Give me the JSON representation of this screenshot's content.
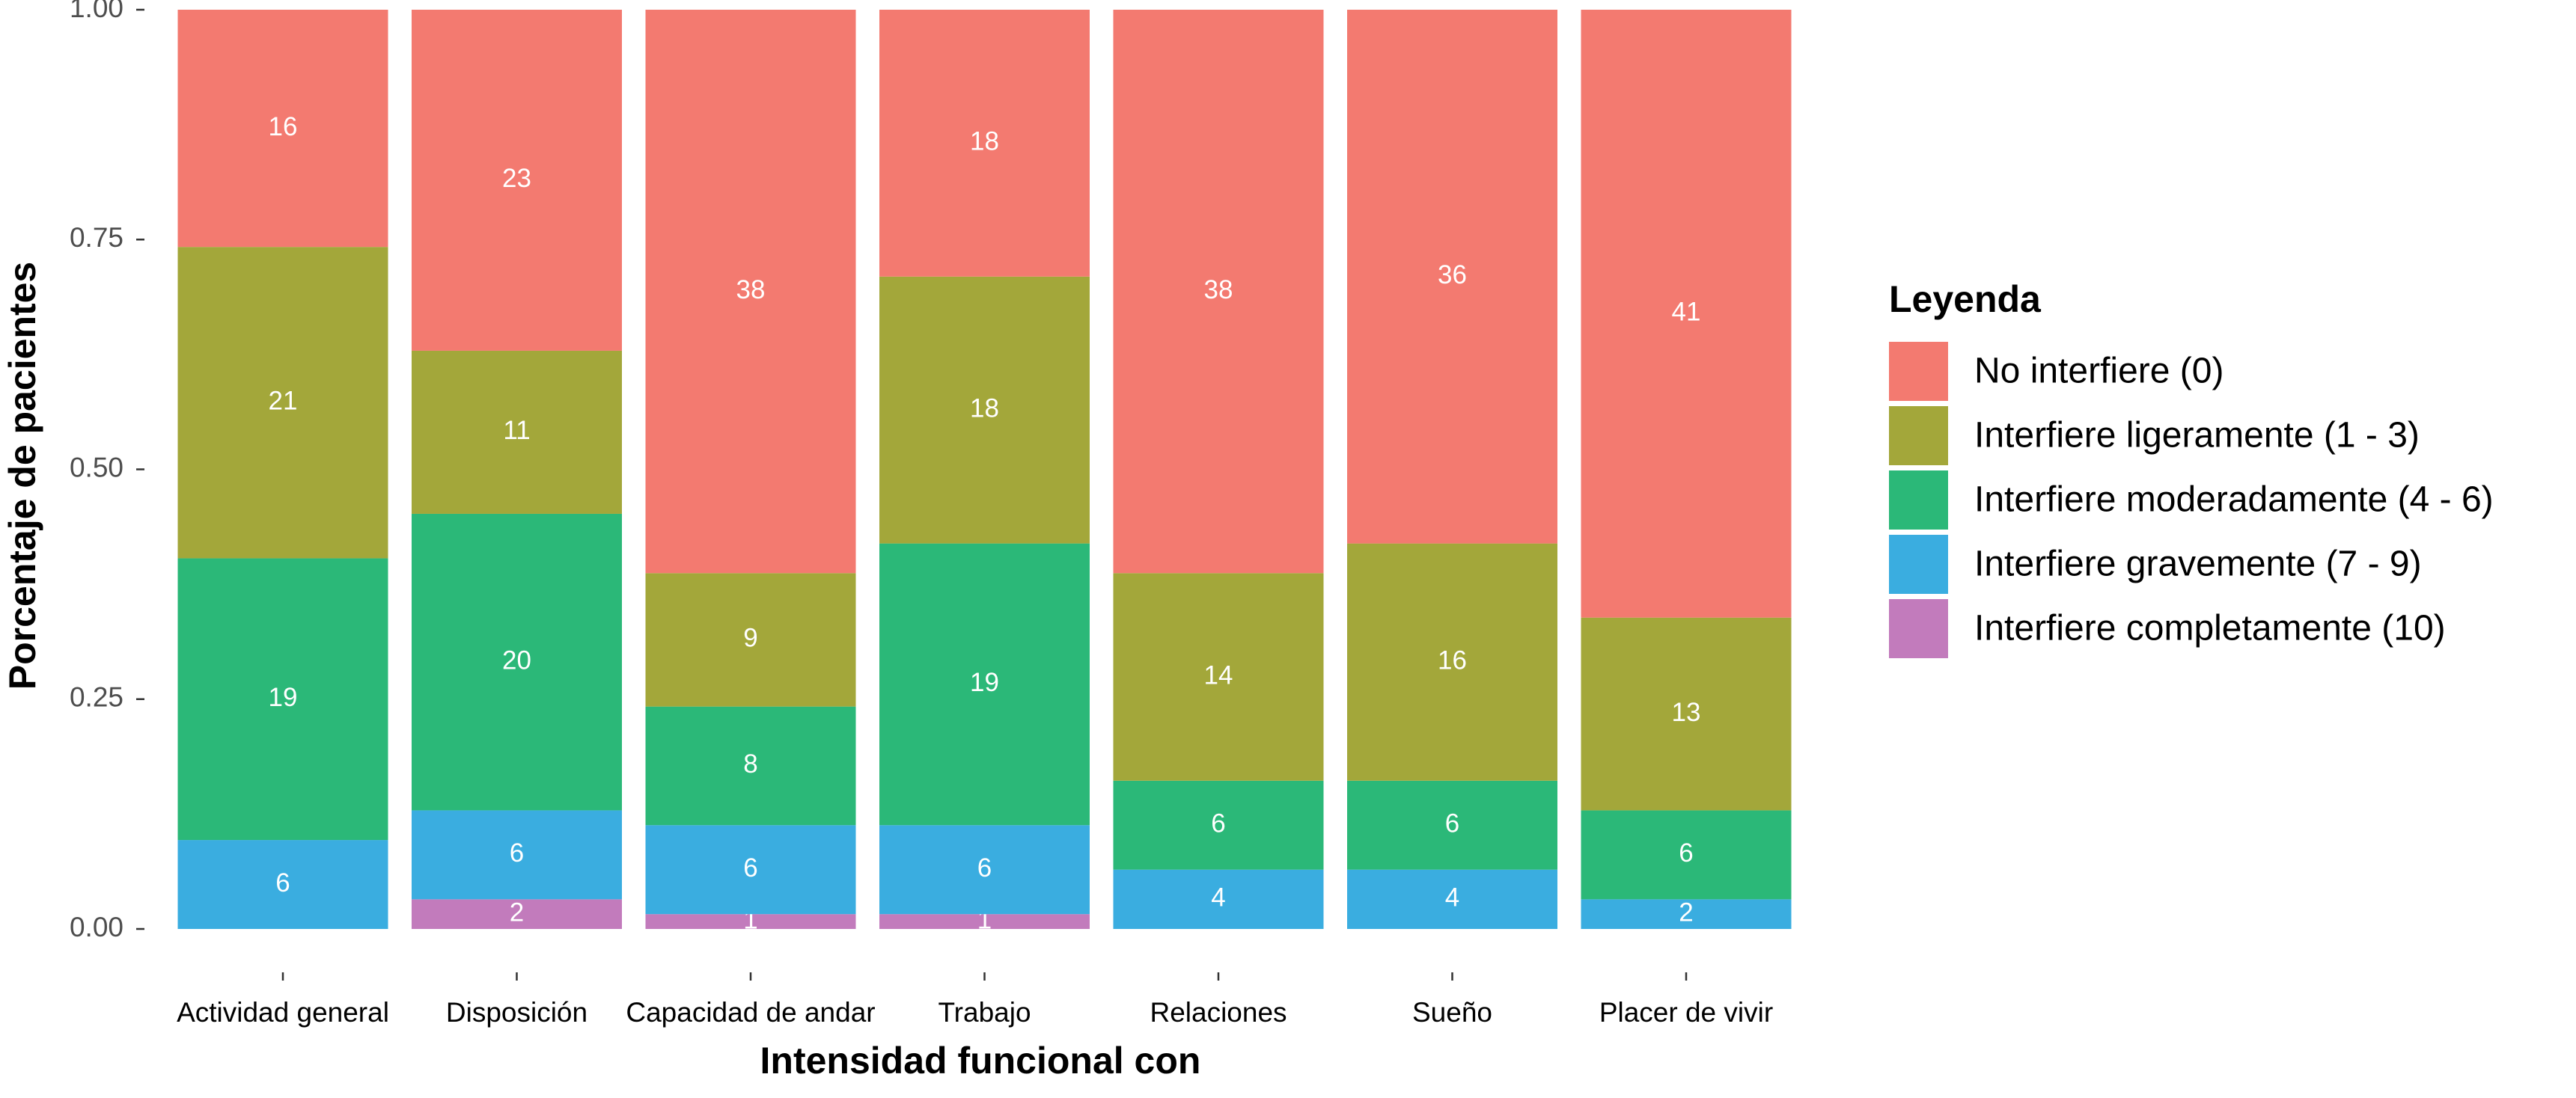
{
  "chart_data": {
    "type": "bar",
    "stacking": "percent",
    "x_label": "Intensidad funcional con",
    "y_label": "Porcentaje de pacientes",
    "legend_title": "Leyenda",
    "legend_position": "right",
    "grid": false,
    "categories": [
      "Actividad general",
      "Disposición",
      "Capacidad de andar",
      "Trabajo",
      "Relaciones",
      "Sueño",
      "Placer de vivir"
    ],
    "series": [
      {
        "name": "No interfiere (0)",
        "color": "#f37a70",
        "values": [
          16,
          23,
          38,
          18,
          38,
          36,
          41
        ]
      },
      {
        "name": "Interfiere ligeramente (1 - 3)",
        "color": "#a3a73a",
        "values": [
          21,
          11,
          9,
          18,
          14,
          16,
          13
        ]
      },
      {
        "name": "Interfiere moderadamente (4 - 6)",
        "color": "#2bb878",
        "values": [
          19,
          20,
          8,
          19,
          6,
          6,
          6
        ]
      },
      {
        "name": "Interfiere gravemente (7 - 9)",
        "color": "#3aade0",
        "values": [
          6,
          6,
          6,
          6,
          4,
          4,
          2
        ]
      },
      {
        "name": "Interfiere completamente (10)",
        "color": "#c27bbc",
        "values": [
          null,
          2,
          1,
          1,
          null,
          null,
          null
        ]
      }
    ],
    "ylim": [
      0,
      1
    ],
    "yticks": [
      {
        "value": 0,
        "label": "0.00"
      },
      {
        "value": 0.25,
        "label": "0.25"
      },
      {
        "value": 0.5,
        "label": "0.50"
      },
      {
        "value": 0.75,
        "label": "0.75"
      },
      {
        "value": 1,
        "label": "1.00"
      }
    ]
  }
}
